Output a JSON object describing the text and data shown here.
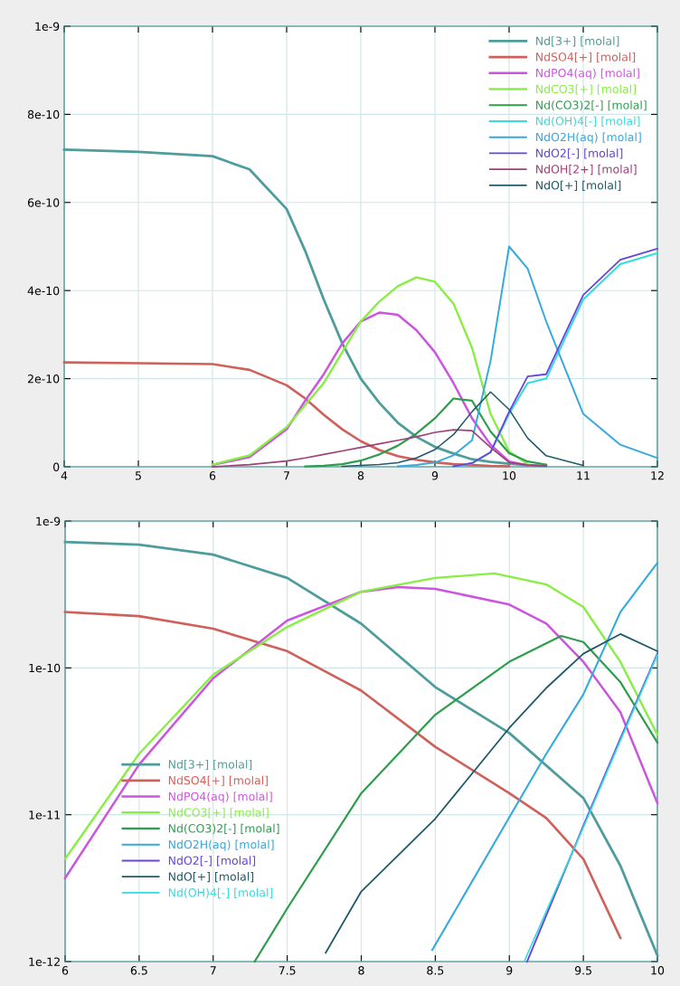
{
  "chart_data": [
    {
      "type": "line",
      "x": [
        4,
        5,
        6,
        6.5,
        7,
        7.25,
        7.5,
        7.75,
        8,
        8.25,
        8.5,
        8.75,
        9,
        9.25,
        9.5,
        9.75,
        10,
        10.25,
        10.5,
        11,
        11.5,
        12
      ],
      "xlim": [
        4,
        12
      ],
      "xticks": [
        4,
        5,
        6,
        7,
        8,
        9,
        10,
        11,
        12
      ],
      "ylim": [
        0,
        1e-09
      ],
      "yticks": [
        0,
        {
          "value": 2e-10,
          "label": "2e-10"
        },
        {
          "value": 4e-10,
          "label": "4e-10"
        },
        {
          "value": 6e-10,
          "label": "6e-10"
        },
        {
          "value": 8e-10,
          "label": "8e-10"
        },
        {
          "value": 1e-09,
          "label": "1e-9"
        }
      ],
      "grid": true,
      "legend": "top right",
      "series": [
        {
          "name": "Nd[3+] [molal]",
          "color": "#4f9c9c",
          "values": [
            7.2e-10,
            7.15e-10,
            7.05e-10,
            6.75e-10,
            5.85e-10,
            4.9e-10,
            3.8e-10,
            2.8e-10,
            2e-10,
            1.45e-10,
            1e-10,
            6.8e-11,
            4.5e-11,
            3e-11,
            1.7e-11,
            1.1e-11,
            7e-12,
            4e-12,
            2e-12,
            null,
            null,
            null
          ]
        },
        {
          "name": "NdSO4[+] [molal]",
          "color": "#d0605a",
          "values": [
            2.37e-10,
            2.35e-10,
            2.33e-10,
            2.2e-10,
            1.85e-10,
            1.55e-10,
            1.18e-10,
            8.5e-11,
            5.8e-11,
            3.8e-11,
            2.4e-11,
            1.6e-11,
            1e-11,
            6e-12,
            4e-12,
            2e-12,
            1e-12,
            null,
            null,
            null,
            null,
            null
          ]
        },
        {
          "name": "NdPO4(aq) [molal]",
          "color": "#cc55e0",
          "values": [
            null,
            null,
            4e-12,
            2.2e-11,
            8.5e-11,
            1.5e-10,
            2.1e-10,
            2.8e-10,
            3.3e-10,
            3.5e-10,
            3.45e-10,
            3.1e-10,
            2.6e-10,
            1.9e-10,
            1.1e-10,
            5e-11,
            1.2e-11,
            3e-12,
            null,
            null,
            null,
            null
          ]
        },
        {
          "name": "NdCO3[+] [molal]",
          "color": "#88ee44",
          "values": [
            null,
            null,
            5e-12,
            2.6e-11,
            9e-11,
            1.4e-10,
            1.9e-10,
            2.6e-10,
            3.3e-10,
            3.75e-10,
            4.1e-10,
            4.3e-10,
            4.2e-10,
            3.7e-10,
            2.7e-10,
            1.2e-10,
            3.5e-11,
            6e-12,
            null,
            null,
            null,
            null
          ]
        },
        {
          "name": "Nd(CO3)2[-] [molal]",
          "color": "#2e9e4e",
          "values": [
            null,
            null,
            null,
            null,
            null,
            1e-12,
            2.3e-12,
            6e-12,
            1.4e-11,
            2.8e-11,
            4.8e-11,
            7.5e-11,
            1.1e-10,
            1.55e-10,
            1.5e-10,
            8e-11,
            3.1e-11,
            1.2e-11,
            5e-12,
            null,
            null,
            null
          ]
        },
        {
          "name": "Nd(OH)4[-] [molal]",
          "color": "#33dddd",
          "values": [
            null,
            null,
            null,
            null,
            null,
            null,
            null,
            null,
            null,
            null,
            null,
            null,
            null,
            1e-12,
            8e-12,
            3.3e-11,
            1.2e-10,
            1.9e-10,
            2e-10,
            3.8e-10,
            4.6e-10,
            4.85e-10
          ]
        },
        {
          "name": "NdO2H(aq) [molal]",
          "color": "#33aadd",
          "values": [
            null,
            null,
            null,
            null,
            null,
            null,
            null,
            null,
            null,
            null,
            1.2e-12,
            4e-12,
            9.6e-12,
            2.6e-11,
            6e-11,
            2.4e-10,
            5e-10,
            4.5e-10,
            3.3e-10,
            1.2e-10,
            5e-11,
            2e-11
          ]
        },
        {
          "name": "NdO2[-] [molal]",
          "color": "#6644dd",
          "values": [
            null,
            null,
            null,
            null,
            null,
            null,
            null,
            null,
            null,
            null,
            null,
            null,
            null,
            1e-12,
            8.4e-12,
            3.3e-11,
            1.25e-10,
            2.05e-10,
            2.1e-10,
            3.9e-10,
            4.7e-10,
            4.95e-10
          ]
        },
        {
          "name": "NdOH[2+] [molal]",
          "color": "#a0407a",
          "values": [
            null,
            null,
            0,
            5e-12,
            1.3e-11,
            2e-11,
            2.8e-11,
            3.6e-11,
            4.4e-11,
            5.2e-11,
            6e-11,
            6.8e-11,
            7.8e-11,
            8.4e-11,
            8.2e-11,
            4.4e-11,
            1e-11,
            4e-12,
            2e-12,
            null,
            null,
            null
          ]
        },
        {
          "name": "NdO[+] [molal]",
          "color": "#1f5a6a",
          "values": [
            null,
            null,
            null,
            null,
            null,
            null,
            null,
            1.2e-12,
            3e-12,
            5e-12,
            9.4e-12,
            2e-11,
            3.9e-11,
            7.3e-11,
            1.25e-10,
            1.7e-10,
            1.3e-10,
            6.5e-11,
            2.5e-11,
            3e-12,
            null,
            null
          ]
        }
      ]
    },
    {
      "type": "line",
      "log": "y",
      "xlim": [
        6,
        10
      ],
      "xticks": [
        6,
        6.5,
        7,
        7.5,
        8,
        8.5,
        9,
        9.5,
        10
      ],
      "ylim": [
        1e-12,
        1e-09
      ],
      "yticks": [
        {
          "value": 1e-12,
          "label": "1e-12"
        },
        {
          "value": 1e-11,
          "label": "1e-11"
        },
        {
          "value": 1e-10,
          "label": "1e-10"
        },
        {
          "value": 1e-09,
          "label": "1e-9"
        }
      ],
      "grid": true,
      "legend": "left",
      "series": [
        {
          "name": "Nd[3+] [molal]",
          "color": "#4f9c9c",
          "x": [
            6,
            6.5,
            7,
            7.5,
            8,
            8.5,
            9,
            9.5,
            9.75,
            10
          ],
          "values": [
            7.2e-10,
            6.9e-10,
            5.9e-10,
            4.1e-10,
            2e-10,
            7.4e-11,
            3.6e-11,
            1.3e-11,
            4.5e-12,
            1.1e-12
          ]
        },
        {
          "name": "NdSO4[+] [molal]",
          "color": "#d0605a",
          "x": [
            6,
            6.5,
            7,
            7.5,
            8,
            8.5,
            9,
            9.25,
            9.5,
            9.75
          ],
          "values": [
            2.4e-10,
            2.25e-10,
            1.85e-10,
            1.3e-10,
            7e-11,
            2.9e-11,
            1.4e-11,
            9.5e-12,
            5e-12,
            1.45e-12
          ]
        },
        {
          "name": "NdPO4(aq) [molal]",
          "color": "#cc55e0",
          "x": [
            6,
            6.5,
            7,
            7.5,
            8,
            8.25,
            8.5,
            9,
            9.25,
            9.5,
            9.75,
            10
          ],
          "values": [
            3.7e-12,
            2.2e-11,
            8.5e-11,
            2.1e-10,
            3.3e-10,
            3.55e-10,
            3.45e-10,
            2.7e-10,
            2e-10,
            1.1e-10,
            5e-11,
            1.2e-11
          ]
        },
        {
          "name": "NdCO3[+] [molal]",
          "color": "#88ee44",
          "x": [
            6,
            6.5,
            7,
            7.5,
            8,
            8.5,
            8.9,
            9.25,
            9.5,
            9.75,
            10
          ],
          "values": [
            5e-12,
            2.6e-11,
            9e-11,
            1.9e-10,
            3.3e-10,
            4.1e-10,
            4.4e-10,
            3.7e-10,
            2.6e-10,
            1.1e-10,
            3.5e-11
          ]
        },
        {
          "name": "Nd(CO3)2[-] [molal]",
          "color": "#2e9e4e",
          "x": [
            7.28,
            7.5,
            8,
            8.5,
            9,
            9.35,
            9.5,
            9.75,
            10
          ],
          "values": [
            1e-12,
            2.3e-12,
            1.4e-11,
            4.8e-11,
            1.1e-10,
            1.65e-10,
            1.5e-10,
            8e-11,
            3.1e-11
          ]
        },
        {
          "name": "NdO2H(aq) [molal]",
          "color": "#33aadd",
          "x": [
            8.48,
            9,
            9.25,
            9.5,
            9.75,
            10
          ],
          "values": [
            1.2e-12,
            9.6e-12,
            2.6e-11,
            6.6e-11,
            2.4e-10,
            5.2e-10
          ]
        },
        {
          "name": "NdO2[-] [molal]",
          "color": "#6644dd",
          "x": [
            9.12,
            9.5,
            9.75,
            10
          ],
          "values": [
            1e-12,
            8.4e-12,
            3.3e-11,
            1.25e-10
          ]
        },
        {
          "name": "NdO[+] [molal]",
          "color": "#1f5a6a",
          "x": [
            7.76,
            8,
            8.5,
            9,
            9.25,
            9.5,
            9.75,
            10
          ],
          "values": [
            1.15e-12,
            3e-12,
            9.4e-12,
            3.9e-11,
            7.3e-11,
            1.25e-10,
            1.7e-10,
            1.3e-10
          ]
        },
        {
          "name": "Nd(OH)4[-] [molal]",
          "color": "#33dddd",
          "x": [
            9.1,
            9.5,
            9.75,
            10
          ],
          "values": [
            1e-12,
            8.2e-12,
            3.2e-11,
            1.23e-10
          ]
        }
      ]
    }
  ]
}
